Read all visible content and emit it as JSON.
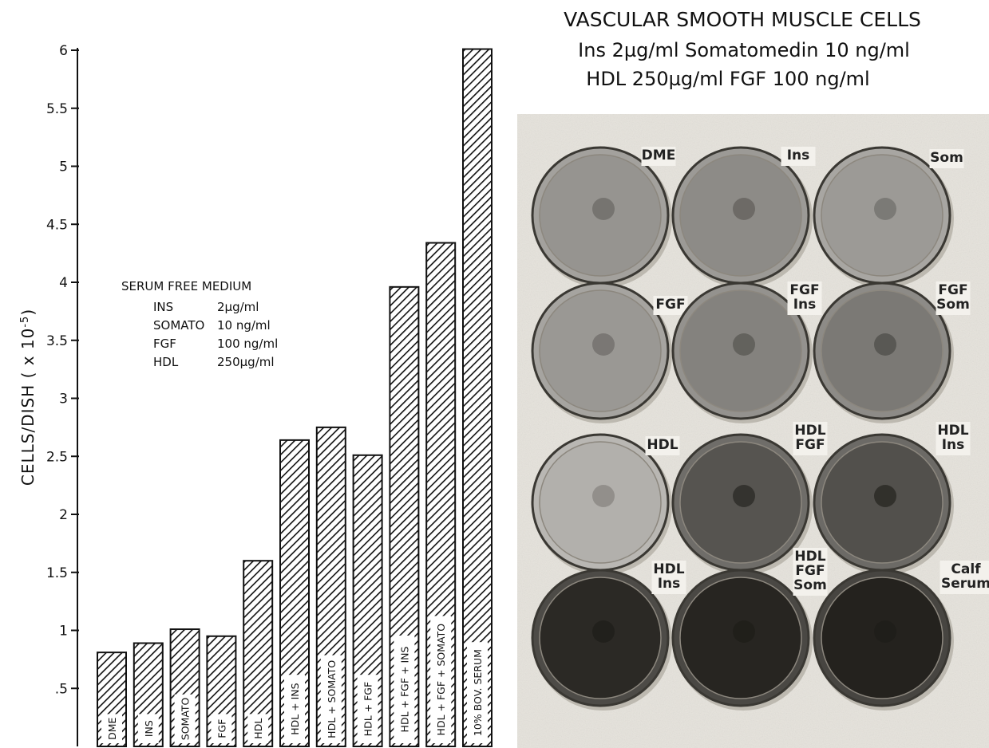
{
  "chart_data": {
    "type": "bar",
    "ylabel": "CELLS/DISH ( x 10",
    "ylabel_exponent": "-5",
    "ylabel_close": ")",
    "ylim": [
      0,
      6
    ],
    "y_ticks": [
      {
        "value": 0.5,
        "label": ".5"
      },
      {
        "value": 1,
        "label": "1"
      },
      {
        "value": 1.5,
        "label": "1.5"
      },
      {
        "value": 2,
        "label": "2"
      },
      {
        "value": 2.5,
        "label": "2.5"
      },
      {
        "value": 3,
        "label": "3"
      },
      {
        "value": 3.5,
        "label": "3.5"
      },
      {
        "value": 4,
        "label": "4"
      },
      {
        "value": 4.5,
        "label": "4.5"
      },
      {
        "value": 5,
        "label": "5"
      },
      {
        "value": 5.5,
        "label": "5.5"
      },
      {
        "value": 6,
        "label": "6"
      }
    ],
    "categories": [
      "DME",
      "INS",
      "SOMATO",
      "FGF",
      "HDL",
      "HDL + INS",
      "HDL + SOMATO",
      "HDL + FGF",
      "HDL + FGF + INS",
      "HDL + FGF + SOMATO",
      "10% BOV. SERUM"
    ],
    "values": [
      0.81,
      0.89,
      1.01,
      0.95,
      1.6,
      2.64,
      2.75,
      2.51,
      3.96,
      4.34,
      6.01
    ],
    "grid": false,
    "legend": {
      "title": "SERUM FREE MEDIUM",
      "rows": [
        {
          "name": "INS",
          "dose": "2µg/ml"
        },
        {
          "name": "SOMATO",
          "dose": "10 ng/ml"
        },
        {
          "name": "FGF",
          "dose": "100 ng/ml"
        },
        {
          "name": "HDL",
          "dose": "250µg/ml"
        }
      ]
    },
    "bar_fill": "diagonal-hatch",
    "colors": {
      "ink": "#111111",
      "background": "#ffffff"
    }
  },
  "photo_panel": {
    "title_lines": [
      "VASCULAR SMOOTH MUSCLE CELLS",
      "Ins 2µg/ml Somatomedin 10 ng/ml",
      "HDL 250µg/ml FGF 100 ng/ml"
    ],
    "dishes": [
      {
        "label_lines": [
          "DME"
        ],
        "stain": 0.35
      },
      {
        "label_lines": [
          "Ins"
        ],
        "stain": 0.4
      },
      {
        "label_lines": [
          "Som"
        ],
        "stain": 0.32
      },
      {
        "label_lines": [
          "FGF"
        ],
        "stain": 0.33
      },
      {
        "label_lines": [
          "FGF",
          "Ins"
        ],
        "stain": 0.45
      },
      {
        "label_lines": [
          "FGF",
          "Som"
        ],
        "stain": 0.5
      },
      {
        "label_lines": [
          "HDL"
        ],
        "stain": 0.2
      },
      {
        "label_lines": [
          "HDL",
          "FGF"
        ],
        "stain": 0.7
      },
      {
        "label_lines": [
          "HDL",
          "Ins"
        ],
        "stain": 0.72
      },
      {
        "label_lines": [
          "HDL",
          "Ins"
        ],
        "stain": 0.93
      },
      {
        "label_lines": [
          "HDL",
          "FGF",
          "Som"
        ],
        "stain": 0.95
      },
      {
        "label_lines": [
          "Calf",
          "Serum"
        ],
        "stain": 0.97
      }
    ],
    "colors": {
      "plate": "#e6e3dc",
      "shadow": "#bdb9b0"
    }
  }
}
